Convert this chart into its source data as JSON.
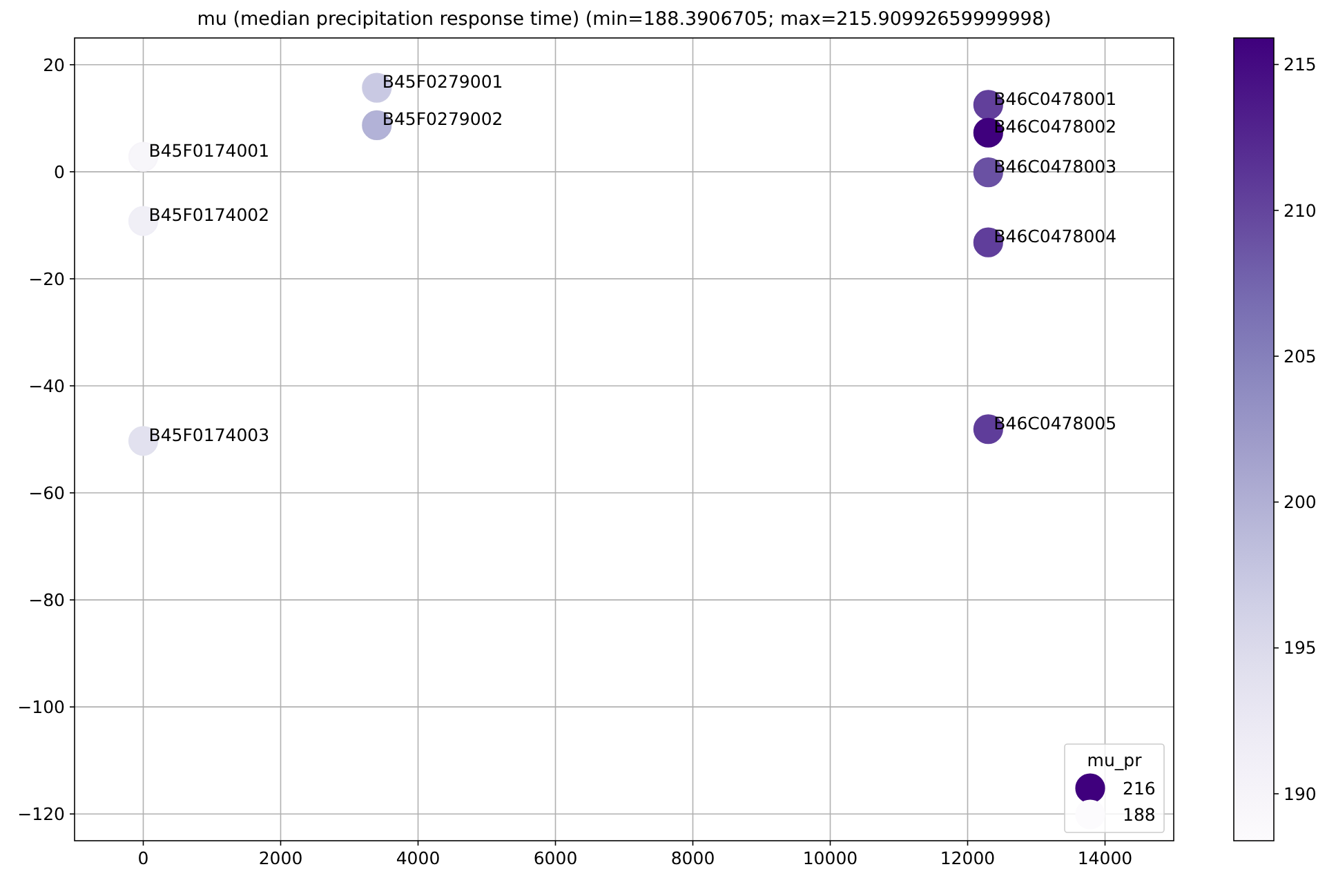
{
  "chart_data": {
    "type": "scatter",
    "title": "mu (median precipitation response time) (min=188.3906705; max=215.90992659999998)",
    "x": [
      0,
      0,
      0,
      3400,
      3400,
      12300,
      12300,
      12300,
      12300,
      12300
    ],
    "values": [
      2.8,
      -9.2,
      -50.3,
      15.7,
      8.7,
      12.5,
      7.3,
      -0.1,
      -13.2,
      -48.1
    ],
    "cvalues": [
      190,
      191.5,
      194,
      197,
      199.8,
      210.5,
      215.9,
      209.1,
      210.5,
      210.5
    ],
    "colors": [
      "#f7f6fa",
      "#f0eff6",
      "#e2e1ef",
      "#c9c9e3",
      "#b2b2d7",
      "#62409b",
      "#3f007d",
      "#6a51a3",
      "#603e9b",
      "#5f3d9a"
    ],
    "series": [
      {
        "name": "216",
        "color": "#3f007d",
        "values": [
          null,
          null,
          null,
          null,
          null,
          null,
          null,
          null,
          null,
          null
        ]
      },
      {
        "name": "188",
        "color": "#fcfbfd",
        "values": [
          null,
          null,
          null,
          null,
          null,
          null,
          null,
          null,
          null,
          null
        ]
      }
    ],
    "annotations": [
      {
        "text": "B45F0174001",
        "x": 0,
        "y": 2.8
      },
      {
        "text": "B45F0174002",
        "x": 0,
        "y": -9.2
      },
      {
        "text": "B45F0174003",
        "x": 0,
        "y": -50.3
      },
      {
        "text": "B45F0279001",
        "x": 3400,
        "y": 15.7
      },
      {
        "text": "B45F0279002",
        "x": 3400,
        "y": 8.7
      },
      {
        "text": "B46C0478001",
        "x": 12300,
        "y": 12.5
      },
      {
        "text": "B46C0478002",
        "x": 12300,
        "y": 7.3
      },
      {
        "text": "B46C0478003",
        "x": 12300,
        "y": -0.1
      },
      {
        "text": "B46C0478004",
        "x": 12300,
        "y": -13.2
      },
      {
        "text": "B46C0478005",
        "x": 12300,
        "y": -48.1
      }
    ],
    "xlim": [
      -1000,
      15000
    ],
    "xticks": [
      0,
      2000,
      4000,
      6000,
      8000,
      10000,
      12000,
      14000
    ],
    "ylim": [
      -125,
      25
    ],
    "yticks": [
      -120,
      -100,
      -80,
      -60,
      -40,
      -20,
      0,
      20
    ],
    "clim": [
      188.39,
      215.91
    ],
    "cticks": [
      190,
      195,
      200,
      205,
      210,
      215
    ],
    "grid": true,
    "legend": "bottom right",
    "legend_title": "mu_pr",
    "marker": "circle"
  }
}
